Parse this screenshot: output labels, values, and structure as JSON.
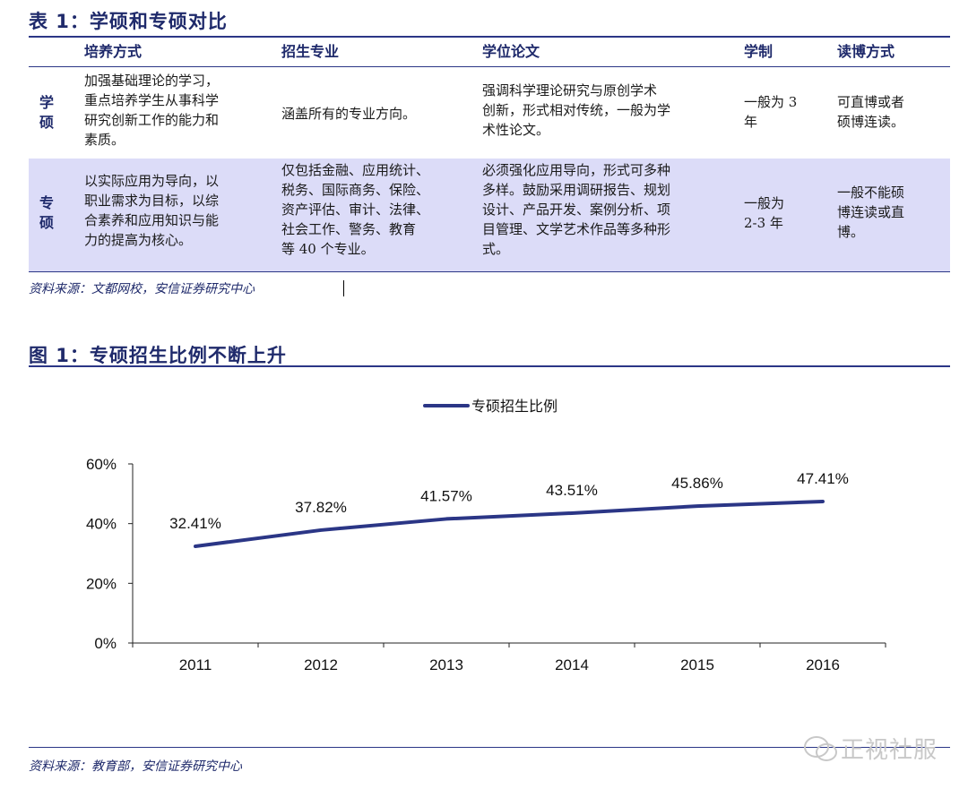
{
  "table": {
    "title": "表 1：学硕和专硕对比",
    "headers": [
      "培养方式",
      "招生专业",
      "学位论文",
      "学制",
      "读博方式"
    ],
    "rows": [
      {
        "label": "学\n硕",
        "cells": [
          "加强基础理论的学习，\n重点培养学生从事科学\n研究创新工作的能力和\n素质。",
          "涵盖所有的专业方向。",
          "强调科学理论研究与原创学术\n创新，形式相对传统，一般为学\n术性论文。",
          "一般为 3\n年",
          "可直博或者\n硕博连读。"
        ]
      },
      {
        "label": "专\n硕",
        "cells": [
          "以实际应用为导向，以\n职业需求为目标，以综\n合素养和应用知识与能\n力的提高为核心。",
          "仅包括金融、应用统计、\n税务、国际商务、保险、\n资产评估、审计、法律、\n社会工作、警务、教育\n等 40 个专业。",
          "必须强化应用导向，形式可多种\n多样。鼓励采用调研报告、规划\n设计、产品开发、案例分析、项\n目管理、文学艺术作品等多种形\n式。",
          "一般为\n2-3 年",
          "一般不能硕\n博连读或直\n博。"
        ]
      }
    ],
    "source": "资料来源：文都网校，安信证券研究中心"
  },
  "figure": {
    "title": "图 1：专硕招生比例不断上升",
    "source": "资料来源：教育部，安信证券研究中心"
  },
  "chart_data": {
    "type": "line",
    "x": [
      "2011",
      "2012",
      "2013",
      "2014",
      "2015",
      "2016"
    ],
    "series": [
      {
        "name": "专硕招生比例",
        "values": [
          32.41,
          37.82,
          41.57,
          43.51,
          45.86,
          47.41
        ]
      }
    ],
    "data_labels": [
      "32.41%",
      "37.82%",
      "41.57%",
      "43.51%",
      "45.86%",
      "47.41%"
    ],
    "yticks": [
      "0%",
      "20%",
      "40%",
      "60%"
    ],
    "ylim": [
      0,
      60
    ],
    "legend": "top-center",
    "color": "#2b3686"
  },
  "watermark": "正视社服"
}
